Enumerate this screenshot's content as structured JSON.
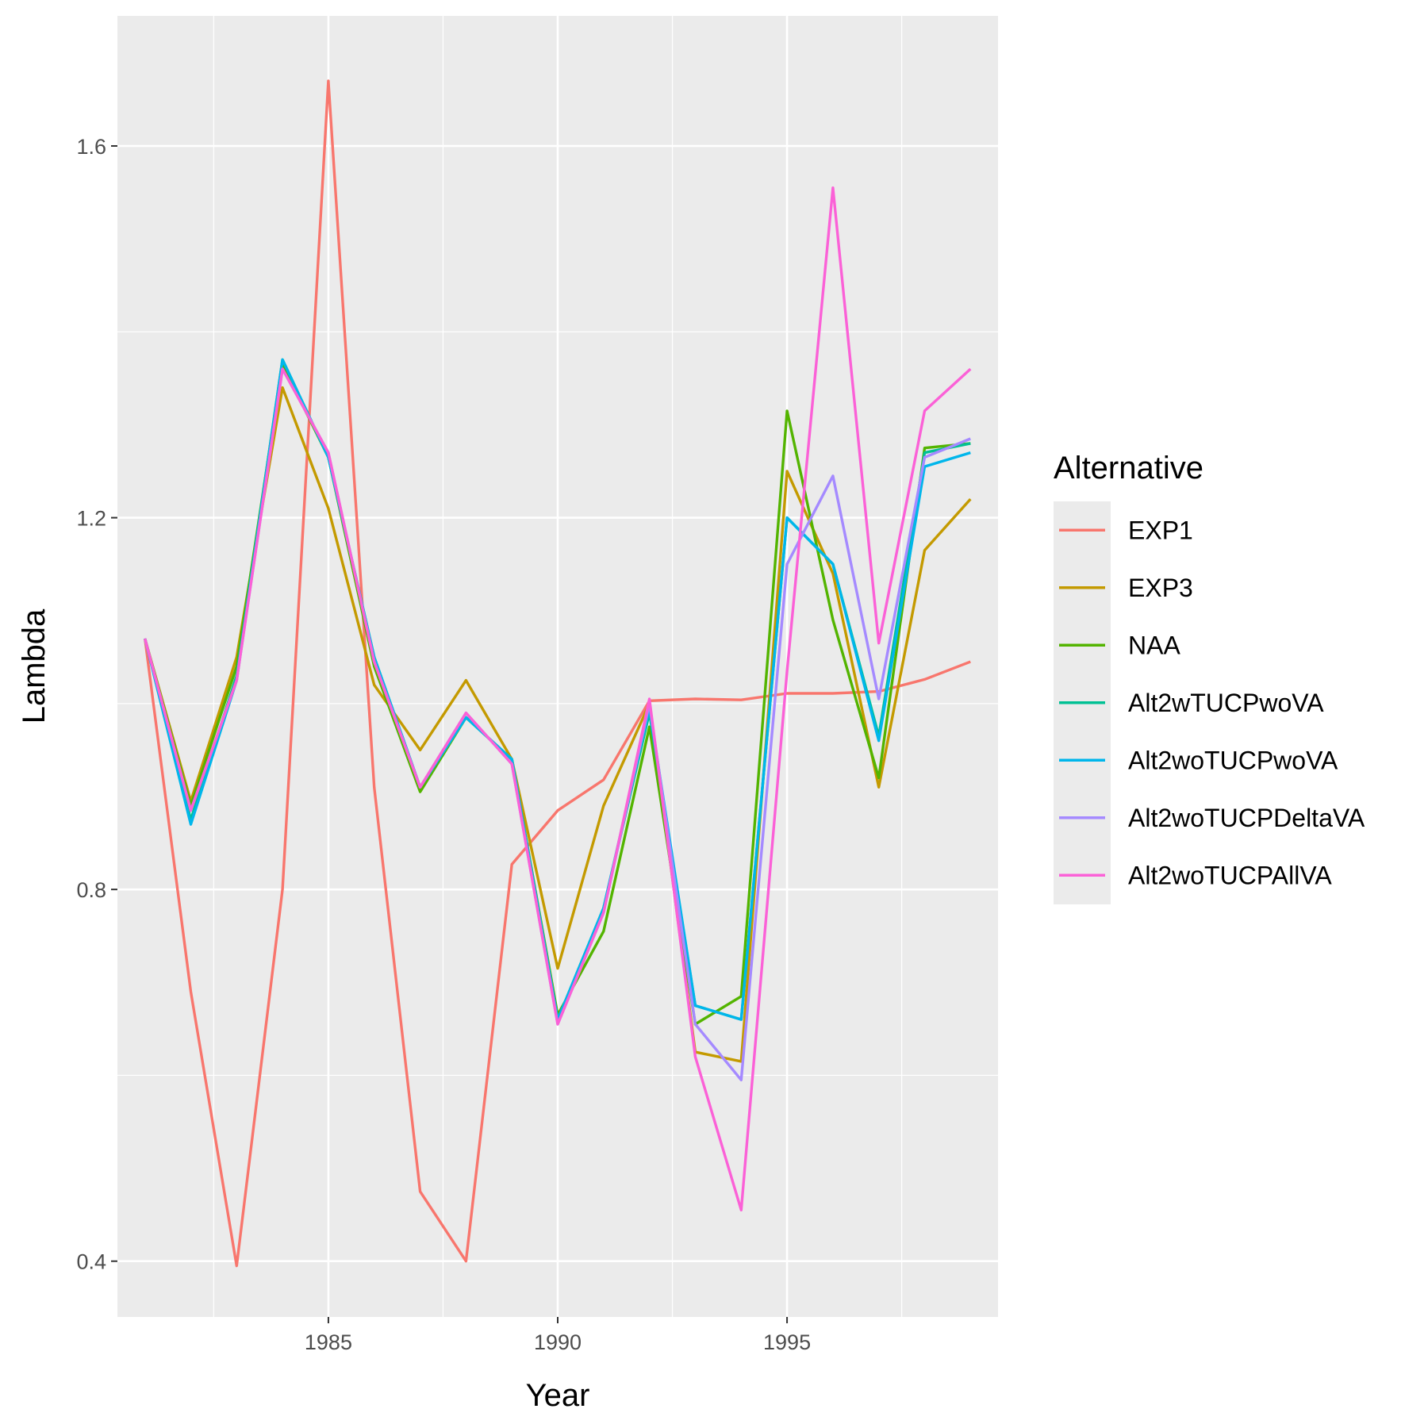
{
  "chart_data": {
    "type": "line",
    "xlabel": "Year",
    "ylabel": "Lambda",
    "xlim": [
      1980.4,
      1999.6
    ],
    "ylim": [
      0.34,
      1.74
    ],
    "x_ticks": [
      1985,
      1990,
      1995
    ],
    "x_tick_labels": [
      "1985",
      "1990",
      "1995"
    ],
    "y_ticks": [
      0.4,
      0.8,
      1.2,
      1.6
    ],
    "y_tick_labels": [
      "0.4",
      "0.8",
      "1.2",
      "1.6"
    ],
    "grid": true,
    "legend": {
      "title": "Alternative",
      "position": "right"
    },
    "x": [
      1981,
      1982,
      1983,
      1984,
      1985,
      1986,
      1987,
      1988,
      1989,
      1990,
      1991,
      1992,
      1993,
      1994,
      1995,
      1996,
      1997,
      1998,
      1999
    ],
    "series": [
      {
        "name": "EXP1",
        "color": "#F8766D",
        "values": [
          1.07,
          0.69,
          0.395,
          0.8,
          1.67,
          0.91,
          0.475,
          0.4,
          0.827,
          0.885,
          0.918,
          1.003,
          1.005,
          1.004,
          1.011,
          1.011,
          1.013,
          1.026,
          1.045
        ]
      },
      {
        "name": "EXP3",
        "color": "#C49A00",
        "values": [
          1.07,
          0.895,
          1.05,
          1.34,
          1.21,
          1.02,
          0.95,
          1.025,
          0.94,
          0.715,
          0.89,
          1.0,
          0.625,
          0.615,
          1.25,
          1.14,
          0.91,
          1.165,
          1.22
        ]
      },
      {
        "name": "NAA",
        "color": "#53B400",
        "values": [
          1.07,
          0.89,
          1.04,
          1.365,
          1.265,
          1.04,
          0.905,
          0.985,
          0.94,
          0.665,
          0.755,
          0.975,
          0.655,
          0.685,
          1.315,
          1.09,
          0.92,
          1.275,
          1.28
        ]
      },
      {
        "name": "Alt2wTUCPwoVA",
        "color": "#00C094",
        "values": [
          1.07,
          0.875,
          1.03,
          1.37,
          1.265,
          1.05,
          0.91,
          0.985,
          0.94,
          0.66,
          0.78,
          0.99,
          0.675,
          0.66,
          1.2,
          1.15,
          0.965,
          1.27,
          1.28
        ]
      },
      {
        "name": "Alt2woTUCPwoVA",
        "color": "#00B6EB",
        "values": [
          1.07,
          0.87,
          1.025,
          1.37,
          1.265,
          1.05,
          0.91,
          0.985,
          0.94,
          0.66,
          0.78,
          0.995,
          0.675,
          0.66,
          1.2,
          1.15,
          0.96,
          1.255,
          1.27
        ]
      },
      {
        "name": "Alt2woTUCPDeltaVA",
        "color": "#A58AFF",
        "values": [
          1.07,
          0.885,
          1.025,
          1.36,
          1.27,
          1.045,
          0.91,
          0.99,
          0.935,
          0.655,
          0.775,
          1.0,
          0.655,
          0.595,
          1.15,
          1.245,
          1.005,
          1.265,
          1.285
        ]
      },
      {
        "name": "Alt2woTUCPAllVA",
        "color": "#FB61D7",
        "values": [
          1.07,
          0.885,
          1.025,
          1.36,
          1.27,
          1.045,
          0.91,
          0.99,
          0.935,
          0.655,
          0.775,
          1.005,
          0.62,
          0.455,
          1.035,
          1.555,
          1.065,
          1.315,
          1.36
        ]
      }
    ]
  }
}
